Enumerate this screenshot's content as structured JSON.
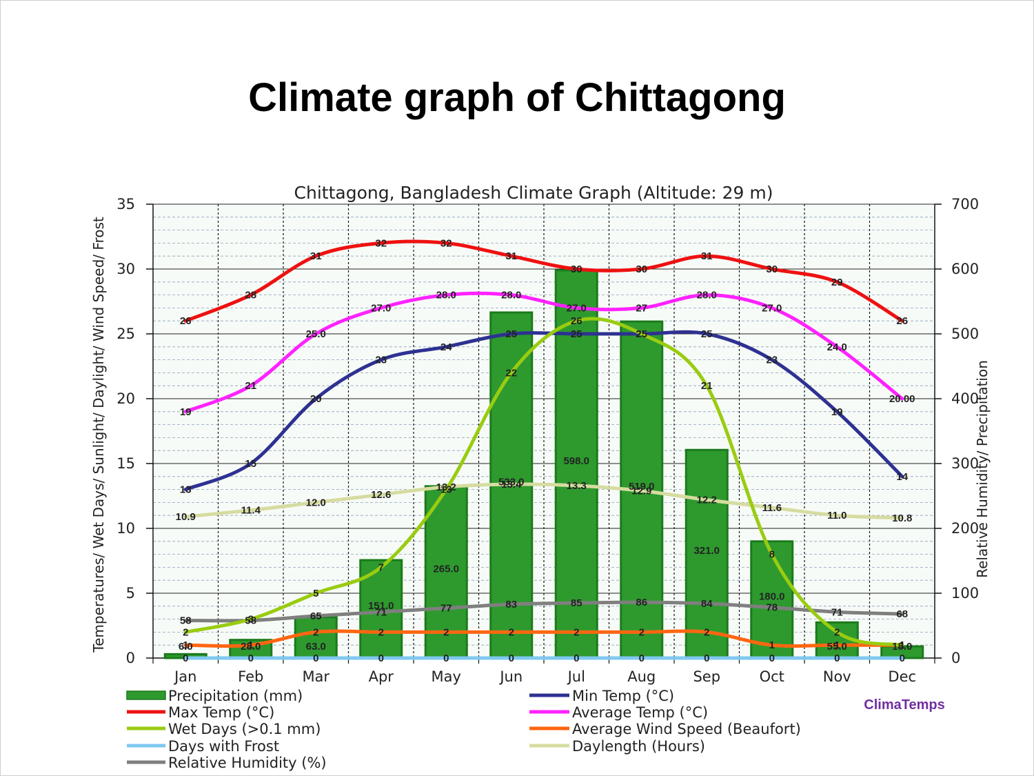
{
  "slide": {
    "title": "Climate graph of Chittagong"
  },
  "brand": {
    "text": "ClimaTemps",
    "color": "#7030a0"
  },
  "chart_data": {
    "type": "line",
    "title": "Chittagong, Bangladesh Climate Graph (Altitude: 29 m)",
    "ylabel_left": "Temperatures/ Wet Days/ Sunlight/ Daylight/ Wind Speed/ Frost",
    "ylabel_right": "Relative Humidity/ Precipitation",
    "categories": [
      "Jan",
      "Feb",
      "Mar",
      "Apr",
      "May",
      "Jun",
      "Jul",
      "Aug",
      "Sep",
      "Oct",
      "Nov",
      "Dec"
    ],
    "ylim_left": [
      0,
      35
    ],
    "ylim_right": [
      0,
      700
    ],
    "left_ticks": [
      "0",
      "5",
      "10",
      "15",
      "20",
      "25",
      "30",
      "35"
    ],
    "right_ticks": [
      "0",
      "100",
      "200",
      "300",
      "400",
      "500",
      "600",
      "700"
    ],
    "bars": {
      "name": "Precipitation (mm)",
      "color": "#2e9a2e",
      "axis": "right",
      "values": [
        6.0,
        28.0,
        63.0,
        151.0,
        265.0,
        533.0,
        598.0,
        519.0,
        321.0,
        180.0,
        55.0,
        18.0
      ],
      "labels": [
        "6.0",
        "28.0",
        "63.0",
        "151.0",
        "265.0",
        "533.0",
        "598.0",
        "519.0",
        "321.0",
        "180.0",
        "55.0",
        "18.0"
      ]
    },
    "series": [
      {
        "name": "Max Temp (°C)",
        "color": "#ee1111",
        "axis": "left",
        "values": [
          26,
          28,
          31,
          32,
          32,
          31,
          30,
          30,
          31,
          30,
          29,
          26
        ],
        "labels": [
          "26",
          "28",
          "31",
          "32",
          "32",
          "31",
          "30",
          "30",
          "31",
          "30",
          "29",
          "26"
        ]
      },
      {
        "name": "Average Temp (°C)",
        "color": "#ff22ff",
        "axis": "left",
        "values": [
          19,
          21,
          25,
          27,
          28,
          28,
          27,
          27,
          28,
          27,
          24,
          20
        ],
        "labels": [
          "19",
          "21",
          "25.0",
          "27.0",
          "28.0",
          "28.0",
          "27.0",
          "27",
          "28.0",
          "27.0",
          "24.0",
          "20.00"
        ]
      },
      {
        "name": "Min Temp (°C)",
        "color": "#2e3192",
        "axis": "left",
        "values": [
          13,
          15,
          20,
          23,
          24,
          25,
          25,
          25,
          25,
          23,
          19,
          14
        ],
        "labels": [
          "13",
          "15",
          "20",
          "23",
          "24",
          "25",
          "25",
          "25",
          "25",
          "23",
          "19",
          "14"
        ]
      },
      {
        "name": "Wet Days (>0.1 mm)",
        "color": "#99cc11",
        "axis": "left",
        "values": [
          2,
          3,
          5,
          7,
          13,
          22,
          26,
          25,
          21,
          8,
          2,
          1
        ],
        "labels": [
          "2",
          "3",
          "5",
          "7",
          "13",
          "22",
          "26",
          "25",
          "21",
          "8",
          "2",
          "1"
        ]
      },
      {
        "name": "Daylength (Hours)",
        "color": "#d6dca0",
        "axis": "left",
        "values": [
          10.9,
          11.4,
          12.0,
          12.6,
          13.2,
          13.4,
          13.3,
          12.9,
          12.2,
          11.6,
          11.0,
          10.8
        ],
        "labels": [
          "10.9",
          "11.4",
          "12.0",
          "12.6",
          "13.2",
          "13.4",
          "13.3",
          "12.9",
          "12.2",
          "11.6",
          "11.0",
          "10.8"
        ]
      },
      {
        "name": "Relative Humidity (%)",
        "color": "#7f7f7f",
        "axis": "right",
        "values": [
          58,
          58,
          65,
          71,
          77,
          83,
          85,
          86,
          84,
          78,
          71,
          68
        ],
        "labels": [
          "58",
          "58",
          "65",
          "71",
          "77",
          "83",
          "85",
          "86",
          "84",
          "78",
          "71",
          "68"
        ]
      },
      {
        "name": "Average Wind Speed (Beaufort)",
        "color": "#ff6611",
        "axis": "left",
        "values": [
          1,
          1,
          2,
          2,
          2,
          2,
          2,
          2,
          2,
          1,
          1,
          1
        ],
        "labels": [
          "1",
          "1",
          "2",
          "2",
          "2",
          "2",
          "2",
          "2",
          "2",
          "1",
          "1",
          "1"
        ]
      },
      {
        "name": "Days with Frost",
        "color": "#7ec8f0",
        "axis": "left",
        "values": [
          0,
          0,
          0,
          0,
          0,
          0,
          0,
          0,
          0,
          0,
          0,
          0
        ],
        "labels": [
          "0",
          "0",
          "0",
          "0",
          "0",
          "0",
          "0",
          "0",
          "0",
          "0",
          "0",
          "0"
        ]
      }
    ],
    "legend": [
      {
        "name": "Precipitation (mm)",
        "color": "#2e9a2e",
        "kind": "bar"
      },
      {
        "name": "Min Temp (°C)",
        "color": "#2e3192",
        "kind": "line"
      },
      {
        "name": "Max Temp (°C)",
        "color": "#ee1111",
        "kind": "line"
      },
      {
        "name": "Average Temp (°C)",
        "color": "#ff22ff",
        "kind": "line"
      },
      {
        "name": "Wet Days (>0.1 mm)",
        "color": "#99cc11",
        "kind": "line"
      },
      {
        "name": "Average Wind Speed (Beaufort)",
        "color": "#ff6611",
        "kind": "line"
      },
      {
        "name": "Days with Frost",
        "color": "#7ec8f0",
        "kind": "line"
      },
      {
        "name": "Daylength (Hours)",
        "color": "#d6dca0",
        "kind": "line"
      },
      {
        "name": "Relative Humidity (%)",
        "color": "#7f7f7f",
        "kind": "line"
      }
    ],
    "legend_position": "bottom",
    "grid": true
  }
}
